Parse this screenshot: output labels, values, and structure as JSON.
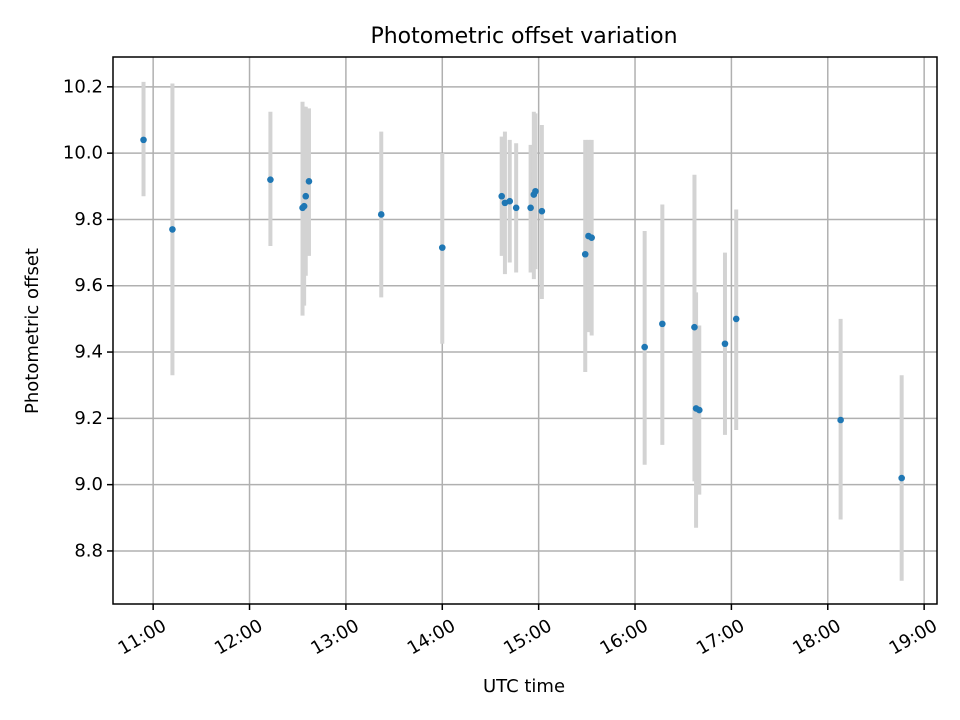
{
  "chart_data": {
    "type": "scatter",
    "title": "Photometric offset variation",
    "xlabel": "UTC time",
    "ylabel": "Photometric offset",
    "xlim": [
      "10:35",
      "19:08"
    ],
    "ylim": [
      8.64,
      10.29
    ],
    "xticks": [
      "11:00",
      "12:00",
      "13:00",
      "14:00",
      "15:00",
      "16:00",
      "17:00",
      "18:00",
      "19:00"
    ],
    "yticks": [
      "8.8",
      "9.0",
      "9.2",
      "9.4",
      "9.6",
      "9.8",
      "10.0",
      "10.2"
    ],
    "grid": true,
    "series": [
      {
        "x": [
          "10:54",
          "11:12",
          "12:13",
          "12:33",
          "12:34",
          "12:35",
          "12:37",
          "13:22",
          "14:00",
          "14:37",
          "14:39",
          "14:42",
          "14:46",
          "14:55",
          "14:57",
          "14:58",
          "15:02",
          "15:29",
          "15:31",
          "15:33",
          "16:06",
          "16:17",
          "16:37",
          "16:38",
          "16:40",
          "16:56",
          "17:03",
          "18:08",
          "18:46"
        ],
        "y": [
          10.04,
          9.77,
          9.92,
          9.835,
          9.84,
          9.87,
          9.915,
          9.815,
          9.715,
          9.87,
          9.85,
          9.855,
          9.835,
          9.835,
          9.875,
          9.885,
          9.825,
          9.695,
          9.75,
          9.745,
          9.415,
          9.485,
          9.475,
          9.23,
          9.225,
          9.425,
          9.5,
          9.195,
          9.02
        ],
        "yerr_low": [
          9.87,
          9.33,
          9.72,
          9.51,
          9.54,
          9.63,
          9.69,
          9.565,
          9.425,
          9.69,
          9.635,
          9.67,
          9.64,
          9.64,
          9.62,
          9.65,
          9.56,
          9.34,
          9.46,
          9.45,
          9.06,
          9.12,
          9.01,
          8.87,
          8.97,
          9.15,
          9.165,
          8.895,
          8.71
        ],
        "yerr_high": [
          10.215,
          10.21,
          10.125,
          10.155,
          10.14,
          10.14,
          10.135,
          10.065,
          10.0,
          10.05,
          10.065,
          10.04,
          10.03,
          10.025,
          10.125,
          10.12,
          10.085,
          10.04,
          10.04,
          10.04,
          9.765,
          9.845,
          9.935,
          9.58,
          9.48,
          9.7,
          9.83,
          9.5,
          9.33
        ]
      }
    ]
  },
  "colors": {
    "point": "#1f77b4",
    "errorbar": "#d3d3d3",
    "grid": "#b0b0b0"
  }
}
